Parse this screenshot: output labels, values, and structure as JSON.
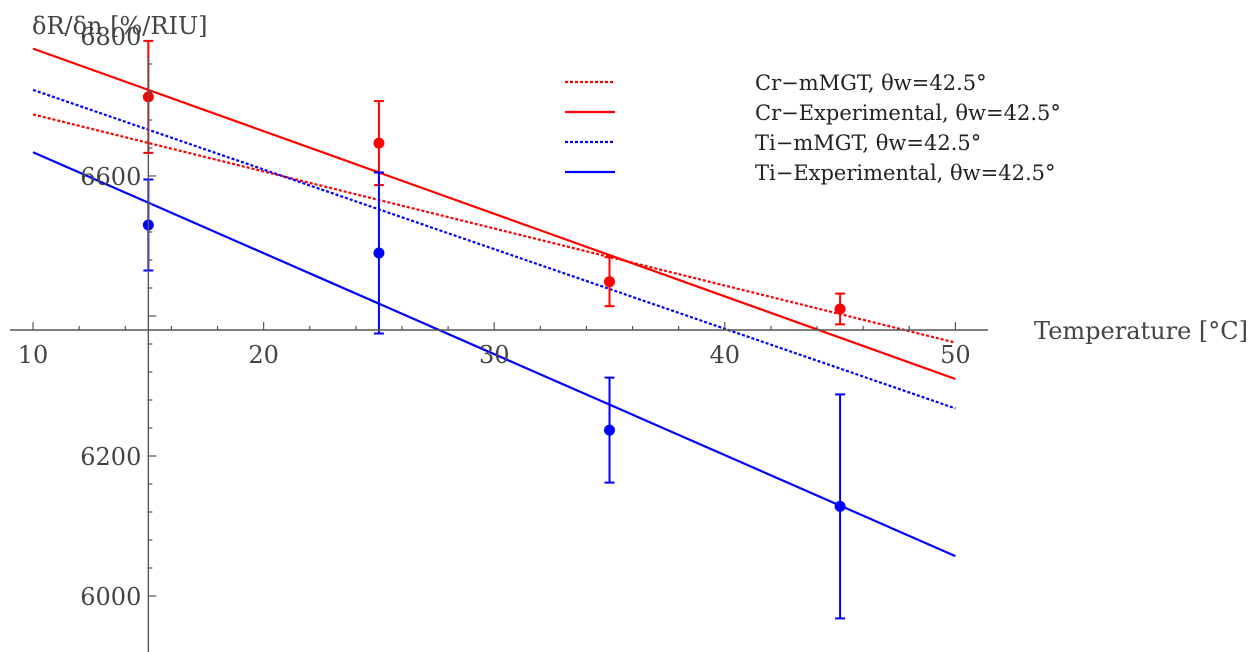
{
  "chart_data": {
    "type": "scatter",
    "xlabel": "Temperature [°C]",
    "ylabel": "δR/δn [%/RIU]",
    "xlim": [
      9,
      50.2
    ],
    "ylim": [
      5920,
      6840
    ],
    "x_origin_y": 6380,
    "x_ticks": [
      10,
      20,
      30,
      40,
      50
    ],
    "x_tick_labels": [
      "10",
      "20",
      "30",
      "40",
      "50"
    ],
    "y_ticks": [
      6000,
      6200,
      6600,
      6800
    ],
    "y_tick_labels": [
      "6000",
      "6200",
      "6600",
      "6800"
    ],
    "grid": false,
    "legend_position": "top-right",
    "series": [
      {
        "name": "Cr−mMGT, θw=42.5°",
        "color": "#ff0000",
        "style": "dotted",
        "line": [
          [
            10,
            6688
          ],
          [
            50,
            6362
          ]
        ]
      },
      {
        "name": "Cr−Experimental, θw=42.5°",
        "color": "#ff0000",
        "style": "solid",
        "line": [
          [
            10,
            6782
          ],
          [
            50,
            6310
          ]
        ],
        "points": [
          {
            "x": 15,
            "y": 6713,
            "err": 80
          },
          {
            "x": 25,
            "y": 6647,
            "err": 60
          },
          {
            "x": 35,
            "y": 6449,
            "err": 35
          },
          {
            "x": 45,
            "y": 6410,
            "err": 22
          }
        ]
      },
      {
        "name": "Ti−mMGT, θw=42.5°",
        "color": "#0000ff",
        "style": "dotted",
        "line": [
          [
            10,
            6723
          ],
          [
            50,
            6268
          ]
        ]
      },
      {
        "name": "Ti−Experimental, θw=42.5°",
        "color": "#0000ff",
        "style": "solid",
        "line": [
          [
            10,
            6634
          ],
          [
            50,
            6057
          ]
        ],
        "points": [
          {
            "x": 15,
            "y": 6530,
            "err": 65
          },
          {
            "x": 25,
            "y": 6490,
            "err": 115
          },
          {
            "x": 35,
            "y": 6237,
            "err": 75
          },
          {
            "x": 45,
            "y": 6128,
            "err": 160
          }
        ]
      }
    ]
  }
}
